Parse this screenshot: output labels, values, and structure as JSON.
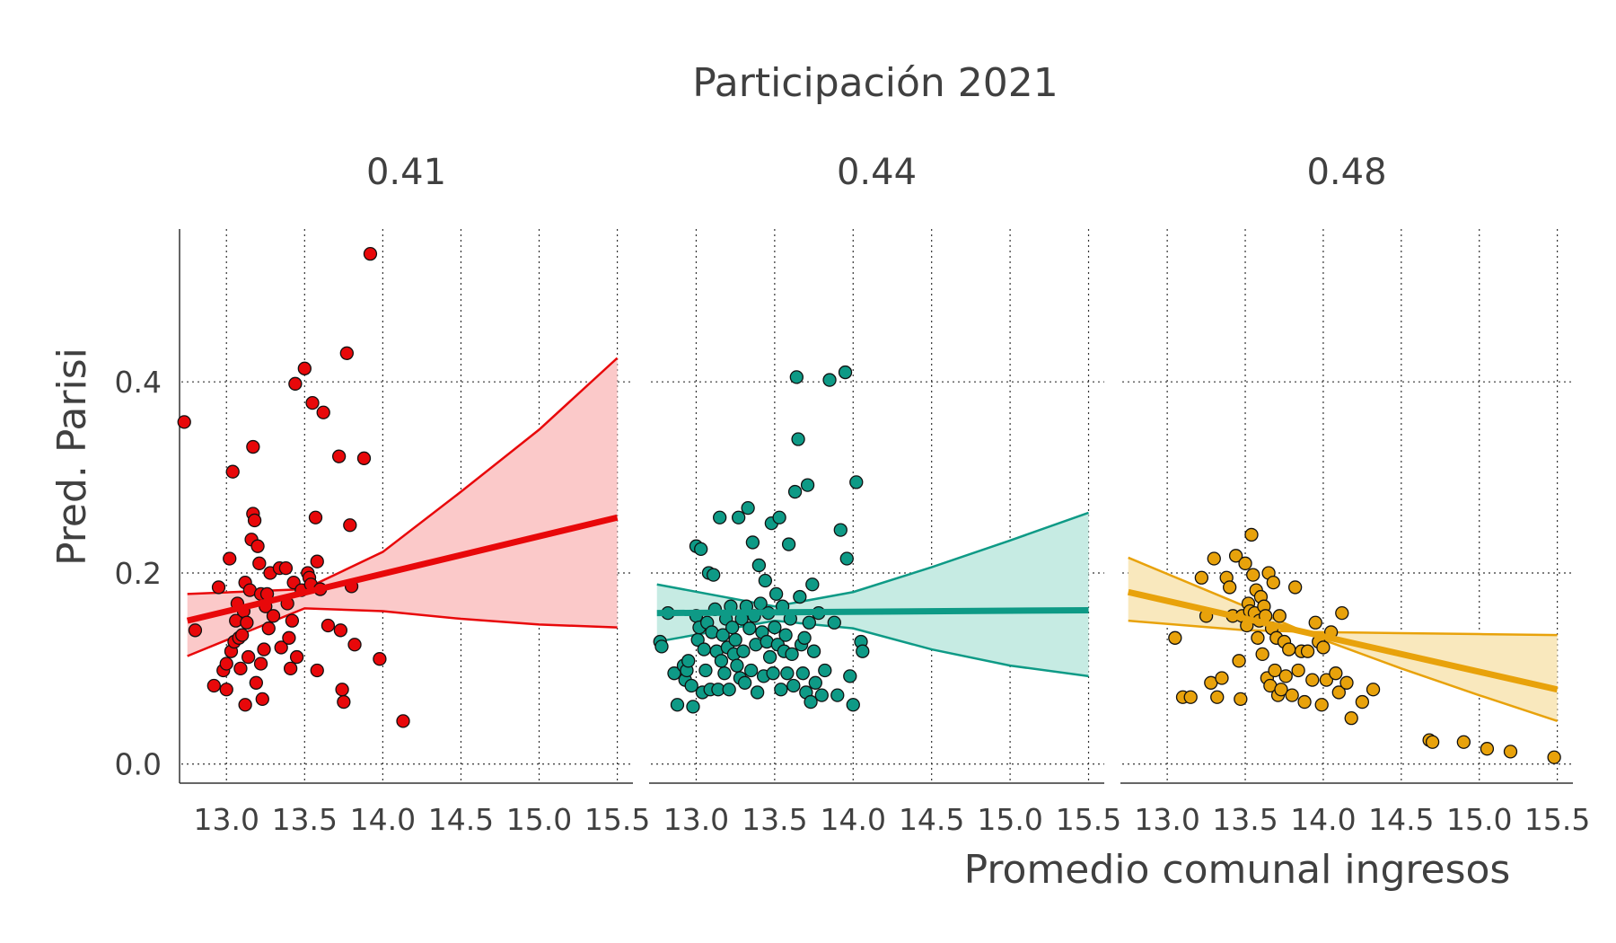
{
  "chart_data": {
    "type": "scatter",
    "title": "Participación 2021",
    "xlabel": "Promedio comunal ingresos",
    "ylabel": "Pred. Parisi",
    "xlim": [
      12.7,
      15.6
    ],
    "ylim": [
      -0.02,
      0.56
    ],
    "x_ticks": [
      13.0,
      13.5,
      14.0,
      14.5,
      15.0,
      15.5
    ],
    "x_tick_labels": [
      "13.0",
      "13.5",
      "14.0",
      "14.5",
      "15.0",
      "15.5"
    ],
    "y_ticks": [
      0.0,
      0.2,
      0.4
    ],
    "y_tick_labels": [
      "0.0",
      "0.2",
      "0.4"
    ],
    "grid": true,
    "panels": [
      {
        "label": "0.41",
        "color": "#e8080a",
        "fill": "#fbc9c9",
        "fit": {
          "x": [
            12.75,
            15.5
          ],
          "mean": [
            0.15,
            0.258
          ],
          "ci_upper": [
            [
              12.75,
              0.178
            ],
            [
              13.5,
              0.183
            ],
            [
              14.0,
              0.222
            ],
            [
              14.5,
              0.285
            ],
            [
              15.0,
              0.35
            ],
            [
              15.5,
              0.425
            ]
          ],
          "ci_lower": [
            [
              12.75,
              0.113
            ],
            [
              13.5,
              0.163
            ],
            [
              14.0,
              0.16
            ],
            [
              14.5,
              0.152
            ],
            [
              15.0,
              0.146
            ],
            [
              15.5,
              0.143
            ]
          ]
        },
        "points": [
          [
            12.73,
            0.358
          ],
          [
            12.8,
            0.14
          ],
          [
            12.92,
            0.082
          ],
          [
            12.95,
            0.185
          ],
          [
            12.98,
            0.098
          ],
          [
            13.0,
            0.078
          ],
          [
            13.0,
            0.105
          ],
          [
            13.02,
            0.215
          ],
          [
            13.03,
            0.118
          ],
          [
            13.04,
            0.306
          ],
          [
            13.05,
            0.128
          ],
          [
            13.06,
            0.15
          ],
          [
            13.07,
            0.168
          ],
          [
            13.08,
            0.132
          ],
          [
            13.09,
            0.1
          ],
          [
            13.1,
            0.135
          ],
          [
            13.11,
            0.16
          ],
          [
            13.12,
            0.19
          ],
          [
            13.12,
            0.062
          ],
          [
            13.13,
            0.148
          ],
          [
            13.14,
            0.112
          ],
          [
            13.15,
            0.182
          ],
          [
            13.16,
            0.235
          ],
          [
            13.17,
            0.332
          ],
          [
            13.17,
            0.262
          ],
          [
            13.18,
            0.255
          ],
          [
            13.19,
            0.085
          ],
          [
            13.2,
            0.228
          ],
          [
            13.21,
            0.21
          ],
          [
            13.22,
            0.178
          ],
          [
            13.22,
            0.105
          ],
          [
            13.23,
            0.068
          ],
          [
            13.24,
            0.12
          ],
          [
            13.25,
            0.165
          ],
          [
            13.26,
            0.178
          ],
          [
            13.27,
            0.142
          ],
          [
            13.28,
            0.2
          ],
          [
            13.3,
            0.155
          ],
          [
            13.34,
            0.205
          ],
          [
            13.35,
            0.122
          ],
          [
            13.38,
            0.205
          ],
          [
            13.39,
            0.168
          ],
          [
            13.4,
            0.132
          ],
          [
            13.41,
            0.1
          ],
          [
            13.42,
            0.15
          ],
          [
            13.43,
            0.19
          ],
          [
            13.44,
            0.398
          ],
          [
            13.45,
            0.112
          ],
          [
            13.48,
            0.182
          ],
          [
            13.5,
            0.414
          ],
          [
            13.52,
            0.2
          ],
          [
            13.53,
            0.195
          ],
          [
            13.54,
            0.188
          ],
          [
            13.55,
            0.378
          ],
          [
            13.57,
            0.258
          ],
          [
            13.58,
            0.212
          ],
          [
            13.58,
            0.098
          ],
          [
            13.6,
            0.183
          ],
          [
            13.62,
            0.368
          ],
          [
            13.65,
            0.145
          ],
          [
            13.72,
            0.322
          ],
          [
            13.73,
            0.14
          ],
          [
            13.74,
            0.078
          ],
          [
            13.75,
            0.065
          ],
          [
            13.77,
            0.43
          ],
          [
            13.79,
            0.25
          ],
          [
            13.8,
            0.186
          ],
          [
            13.82,
            0.125
          ],
          [
            13.88,
            0.32
          ],
          [
            13.92,
            0.534
          ],
          [
            13.98,
            0.11
          ],
          [
            14.13,
            0.045
          ]
        ]
      },
      {
        "label": "0.44",
        "color": "#0e9a86",
        "fill": "#c6ebe3",
        "fit": {
          "x": [
            12.75,
            15.5
          ],
          "mean": [
            0.158,
            0.161
          ],
          "ci_upper": [
            [
              12.75,
              0.188
            ],
            [
              13.5,
              0.165
            ],
            [
              14.0,
              0.18
            ],
            [
              14.5,
              0.206
            ],
            [
              15.0,
              0.234
            ],
            [
              15.5,
              0.263
            ]
          ],
          "ci_lower": [
            [
              12.75,
              0.128
            ],
            [
              13.5,
              0.15
            ],
            [
              14.0,
              0.142
            ],
            [
              14.5,
              0.12
            ],
            [
              15.0,
              0.103
            ],
            [
              15.5,
              0.092
            ]
          ]
        },
        "points": [
          [
            12.77,
            0.128
          ],
          [
            12.78,
            0.123
          ],
          [
            12.82,
            0.158
          ],
          [
            12.86,
            0.095
          ],
          [
            12.88,
            0.062
          ],
          [
            12.92,
            0.103
          ],
          [
            12.93,
            0.088
          ],
          [
            12.94,
            0.098
          ],
          [
            12.95,
            0.108
          ],
          [
            12.97,
            0.082
          ],
          [
            12.98,
            0.06
          ],
          [
            13.0,
            0.155
          ],
          [
            13.0,
            0.228
          ],
          [
            13.01,
            0.13
          ],
          [
            13.02,
            0.143
          ],
          [
            13.03,
            0.225
          ],
          [
            13.04,
            0.075
          ],
          [
            13.05,
            0.12
          ],
          [
            13.06,
            0.098
          ],
          [
            13.07,
            0.148
          ],
          [
            13.08,
            0.2
          ],
          [
            13.09,
            0.078
          ],
          [
            13.1,
            0.138
          ],
          [
            13.11,
            0.198
          ],
          [
            13.12,
            0.162
          ],
          [
            13.13,
            0.118
          ],
          [
            13.14,
            0.078
          ],
          [
            13.15,
            0.258
          ],
          [
            13.16,
            0.108
          ],
          [
            13.17,
            0.135
          ],
          [
            13.18,
            0.095
          ],
          [
            13.19,
            0.152
          ],
          [
            13.2,
            0.122
          ],
          [
            13.21,
            0.078
          ],
          [
            13.22,
            0.165
          ],
          [
            13.23,
            0.143
          ],
          [
            13.24,
            0.115
          ],
          [
            13.25,
            0.13
          ],
          [
            13.26,
            0.103
          ],
          [
            13.27,
            0.258
          ],
          [
            13.28,
            0.09
          ],
          [
            13.29,
            0.152
          ],
          [
            13.3,
            0.118
          ],
          [
            13.31,
            0.085
          ],
          [
            13.32,
            0.165
          ],
          [
            13.33,
            0.268
          ],
          [
            13.34,
            0.142
          ],
          [
            13.35,
            0.098
          ],
          [
            13.36,
            0.232
          ],
          [
            13.37,
            0.155
          ],
          [
            13.38,
            0.125
          ],
          [
            13.39,
            0.075
          ],
          [
            13.4,
            0.208
          ],
          [
            13.41,
            0.168
          ],
          [
            13.42,
            0.138
          ],
          [
            13.43,
            0.092
          ],
          [
            13.44,
            0.192
          ],
          [
            13.45,
            0.128
          ],
          [
            13.46,
            0.158
          ],
          [
            13.47,
            0.112
          ],
          [
            13.48,
            0.252
          ],
          [
            13.49,
            0.095
          ],
          [
            13.5,
            0.143
          ],
          [
            13.51,
            0.178
          ],
          [
            13.52,
            0.125
          ],
          [
            13.53,
            0.258
          ],
          [
            13.54,
            0.078
          ],
          [
            13.55,
            0.165
          ],
          [
            13.56,
            0.118
          ],
          [
            13.57,
            0.135
          ],
          [
            13.58,
            0.095
          ],
          [
            13.59,
            0.23
          ],
          [
            13.6,
            0.152
          ],
          [
            13.61,
            0.115
          ],
          [
            13.62,
            0.082
          ],
          [
            13.63,
            0.285
          ],
          [
            13.64,
            0.405
          ],
          [
            13.65,
            0.34
          ],
          [
            13.66,
            0.175
          ],
          [
            13.67,
            0.125
          ],
          [
            13.68,
            0.095
          ],
          [
            13.69,
            0.132
          ],
          [
            13.7,
            0.075
          ],
          [
            13.71,
            0.292
          ],
          [
            13.72,
            0.148
          ],
          [
            13.73,
            0.065
          ],
          [
            13.74,
            0.188
          ],
          [
            13.75,
            0.118
          ],
          [
            13.76,
            0.085
          ],
          [
            13.78,
            0.158
          ],
          [
            13.8,
            0.072
          ],
          [
            13.82,
            0.098
          ],
          [
            13.85,
            0.402
          ],
          [
            13.88,
            0.148
          ],
          [
            13.9,
            0.072
          ],
          [
            13.92,
            0.245
          ],
          [
            13.95,
            0.41
          ],
          [
            13.96,
            0.215
          ],
          [
            13.98,
            0.092
          ],
          [
            14.0,
            0.062
          ],
          [
            14.02,
            0.295
          ],
          [
            14.05,
            0.128
          ],
          [
            14.06,
            0.118
          ]
        ]
      },
      {
        "label": "0.48",
        "color": "#e8a20b",
        "fill": "#f9e8bd",
        "fit": {
          "x": [
            12.75,
            15.5
          ],
          "mean": [
            0.18,
            0.078
          ],
          "ci_upper": [
            [
              12.75,
              0.216
            ],
            [
              13.5,
              0.165
            ],
            [
              14.0,
              0.13
            ],
            [
              14.5,
              0.1
            ],
            [
              15.0,
              0.072
            ],
            [
              15.5,
              0.045
            ]
          ],
          "ci_lower": [
            [
              12.75,
              0.15
            ],
            [
              13.5,
              0.14
            ],
            [
              14.0,
              0.138
            ],
            [
              14.5,
              0.137
            ],
            [
              15.0,
              0.136
            ],
            [
              15.5,
              0.135
            ]
          ]
        },
        "points": [
          [
            13.05,
            0.132
          ],
          [
            13.1,
            0.07
          ],
          [
            13.15,
            0.07
          ],
          [
            13.22,
            0.195
          ],
          [
            13.25,
            0.155
          ],
          [
            13.28,
            0.085
          ],
          [
            13.3,
            0.215
          ],
          [
            13.32,
            0.07
          ],
          [
            13.35,
            0.09
          ],
          [
            13.38,
            0.195
          ],
          [
            13.4,
            0.185
          ],
          [
            13.42,
            0.155
          ],
          [
            13.44,
            0.218
          ],
          [
            13.46,
            0.108
          ],
          [
            13.47,
            0.068
          ],
          [
            13.48,
            0.155
          ],
          [
            13.5,
            0.21
          ],
          [
            13.51,
            0.145
          ],
          [
            13.52,
            0.168
          ],
          [
            13.53,
            0.16
          ],
          [
            13.54,
            0.24
          ],
          [
            13.55,
            0.198
          ],
          [
            13.56,
            0.158
          ],
          [
            13.57,
            0.182
          ],
          [
            13.58,
            0.132
          ],
          [
            13.59,
            0.15
          ],
          [
            13.6,
            0.175
          ],
          [
            13.61,
            0.115
          ],
          [
            13.62,
            0.165
          ],
          [
            13.63,
            0.155
          ],
          [
            13.64,
            0.09
          ],
          [
            13.65,
            0.2
          ],
          [
            13.66,
            0.082
          ],
          [
            13.67,
            0.142
          ],
          [
            13.68,
            0.19
          ],
          [
            13.69,
            0.098
          ],
          [
            13.7,
            0.132
          ],
          [
            13.71,
            0.072
          ],
          [
            13.72,
            0.155
          ],
          [
            13.73,
            0.078
          ],
          [
            13.75,
            0.128
          ],
          [
            13.76,
            0.092
          ],
          [
            13.78,
            0.12
          ],
          [
            13.8,
            0.072
          ],
          [
            13.82,
            0.185
          ],
          [
            13.84,
            0.098
          ],
          [
            13.86,
            0.118
          ],
          [
            13.88,
            0.065
          ],
          [
            13.9,
            0.118
          ],
          [
            13.93,
            0.088
          ],
          [
            13.95,
            0.148
          ],
          [
            13.97,
            0.128
          ],
          [
            13.99,
            0.062
          ],
          [
            14.0,
            0.122
          ],
          [
            14.02,
            0.088
          ],
          [
            14.05,
            0.138
          ],
          [
            14.08,
            0.095
          ],
          [
            14.1,
            0.075
          ],
          [
            14.12,
            0.158
          ],
          [
            14.15,
            0.085
          ],
          [
            14.18,
            0.048
          ],
          [
            14.25,
            0.065
          ],
          [
            14.32,
            0.078
          ],
          [
            14.68,
            0.025
          ],
          [
            14.7,
            0.023
          ],
          [
            14.9,
            0.023
          ],
          [
            15.05,
            0.016
          ],
          [
            15.2,
            0.013
          ],
          [
            15.48,
            0.007
          ]
        ]
      }
    ]
  }
}
